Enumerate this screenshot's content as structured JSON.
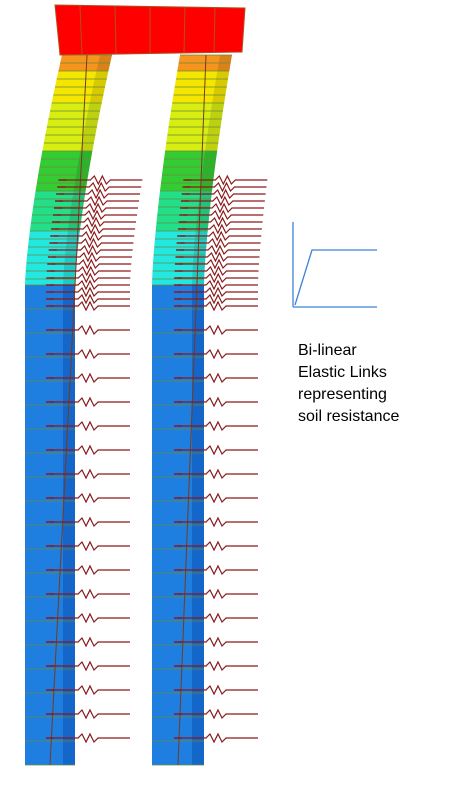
{
  "annotation": {
    "lines": [
      "Bi-linear",
      "Elastic Links",
      "representing",
      "soil resistance"
    ]
  }
}
